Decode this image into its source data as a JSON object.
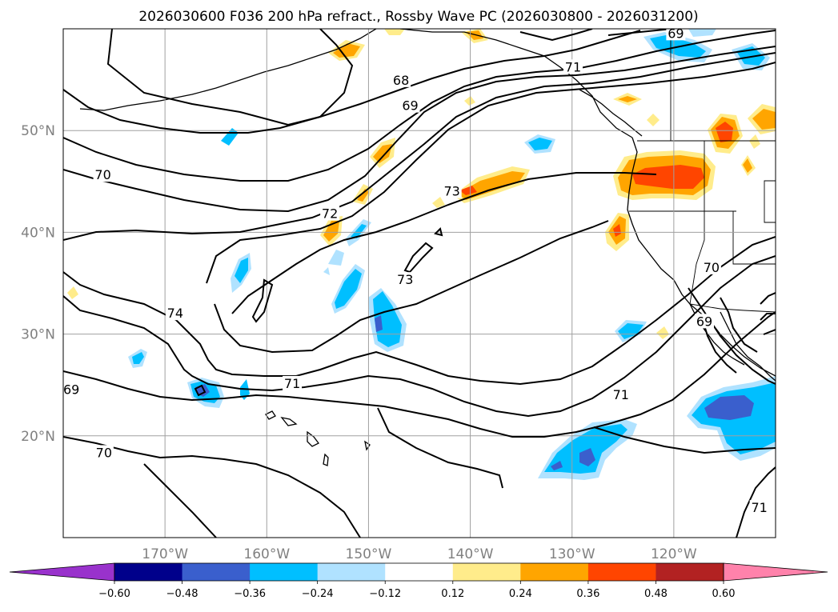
{
  "chart_data": {
    "type": "contour_map",
    "title": "2026030600 F036 200 hPa refract., Rossby Wave PC (2026030800 - 2026031200)",
    "region": "North Pacific / western North America",
    "lon_range": [
      -180,
      -110
    ],
    "lat_range": [
      10,
      60
    ],
    "xticks": [
      {
        "lon": -170,
        "label": "170°W"
      },
      {
        "lon": -160,
        "label": "160°W"
      },
      {
        "lon": -150,
        "label": "150°W"
      },
      {
        "lon": -140,
        "label": "140°W"
      },
      {
        "lon": -130,
        "label": "130°W"
      },
      {
        "lon": -120,
        "label": "120°W"
      }
    ],
    "yticks": [
      {
        "lat": 20,
        "label": "20°N"
      },
      {
        "lat": 30,
        "label": "30°N"
      },
      {
        "lat": 40,
        "label": "40°N"
      },
      {
        "lat": 50,
        "label": "50°N"
      }
    ],
    "grid": true,
    "contour_labels": [
      {
        "text": "68",
        "lon": -146.8,
        "lat": 54.9
      },
      {
        "text": "69",
        "lon": -145.9,
        "lat": 52.4
      },
      {
        "text": "69",
        "lon": -119.8,
        "lat": 59.5
      },
      {
        "text": "69",
        "lon": -179.2,
        "lat": 24.5
      },
      {
        "text": "69",
        "lon": -117.0,
        "lat": 31.2
      },
      {
        "text": "70",
        "lon": -176.1,
        "lat": 45.6
      },
      {
        "text": "70",
        "lon": -176.0,
        "lat": 18.3
      },
      {
        "text": "70",
        "lon": -116.3,
        "lat": 36.5
      },
      {
        "text": "71",
        "lon": -157.5,
        "lat": 25.1
      },
      {
        "text": "71",
        "lon": -125.2,
        "lat": 24.0
      },
      {
        "text": "71",
        "lon": -111.6,
        "lat": 12.9
      },
      {
        "text": "71",
        "lon": -129.9,
        "lat": 56.2
      },
      {
        "text": "72",
        "lon": -153.8,
        "lat": 41.8
      },
      {
        "text": "73",
        "lon": -141.8,
        "lat": 44.0
      },
      {
        "text": "73",
        "lon": -146.4,
        "lat": 35.3
      },
      {
        "text": "74",
        "lon": -169.0,
        "lat": 32.0
      }
    ],
    "filled_regions": [
      {
        "sign": "negative",
        "level": -0.36,
        "lon": -131.5,
        "lat": 18.0
      },
      {
        "sign": "negative",
        "level": -0.36,
        "lon": -115.5,
        "lat": 23.0
      },
      {
        "sign": "negative",
        "level": -0.24,
        "lon": -150.2,
        "lat": 34.5
      },
      {
        "sign": "negative",
        "level": -0.24,
        "lon": -148.5,
        "lat": 30.8
      },
      {
        "sign": "negative",
        "level": -0.36,
        "lon": -164.2,
        "lat": 24.8
      },
      {
        "sign": "negative",
        "level": -0.24,
        "lon": -156.6,
        "lat": 36.4
      },
      {
        "sign": "negative",
        "level": -0.24,
        "lon": -132.9,
        "lat": 48.6
      },
      {
        "sign": "negative",
        "level": -0.24,
        "lon": -124.3,
        "lat": 30.6
      },
      {
        "sign": "negative",
        "level": -0.24,
        "lon": -118.0,
        "lat": 58.0
      },
      {
        "sign": "negative",
        "level": -0.24,
        "lon": -111.5,
        "lat": 58.8
      },
      {
        "sign": "negative",
        "level": -0.24,
        "lon": -149.0,
        "lat": 39.6
      },
      {
        "sign": "negative",
        "level": -0.24,
        "lon": -173.4,
        "lat": 27.6
      },
      {
        "sign": "positive",
        "level": 0.36,
        "lon": -121.2,
        "lat": 44.5
      },
      {
        "sign": "positive",
        "level": 0.24,
        "lon": -139.4,
        "lat": 44.7
      },
      {
        "sign": "positive",
        "level": 0.36,
        "lon": -115.3,
        "lat": 50.0
      },
      {
        "sign": "positive",
        "level": 0.24,
        "lon": -111.3,
        "lat": 51.0
      },
      {
        "sign": "positive",
        "level": 0.24,
        "lon": -127.3,
        "lat": 40.0
      },
      {
        "sign": "positive",
        "level": 0.24,
        "lon": -152.5,
        "lat": 40.0
      },
      {
        "sign": "positive",
        "level": 0.24,
        "lon": -147.5,
        "lat": 47.5
      },
      {
        "sign": "positive",
        "level": 0.24,
        "lon": -151.0,
        "lat": 43.6
      },
      {
        "sign": "positive",
        "level": 0.24,
        "lon": -153.8,
        "lat": 58.0
      },
      {
        "sign": "positive",
        "level": 0.12,
        "lon": -126.1,
        "lat": 53.0
      }
    ],
    "colorbar": {
      "orientation": "horizontal",
      "extend": "both",
      "levels": [
        -0.6,
        -0.48,
        -0.36,
        -0.24,
        -0.12,
        0.12,
        0.24,
        0.36,
        0.48,
        0.6
      ],
      "tick_labels": [
        "−0.60",
        "−0.48",
        "−0.36",
        "−0.24",
        "−0.12",
        "0.12",
        "0.24",
        "0.36",
        "0.48",
        "0.60"
      ],
      "colors": [
        "#9932cc",
        "#00008b",
        "#3a5fcd",
        "#00bfff",
        "#b0e2ff",
        "#ffffff",
        "#ffec8b",
        "#ffa500",
        "#ff4500",
        "#b22222",
        "#ff82ab"
      ]
    }
  }
}
